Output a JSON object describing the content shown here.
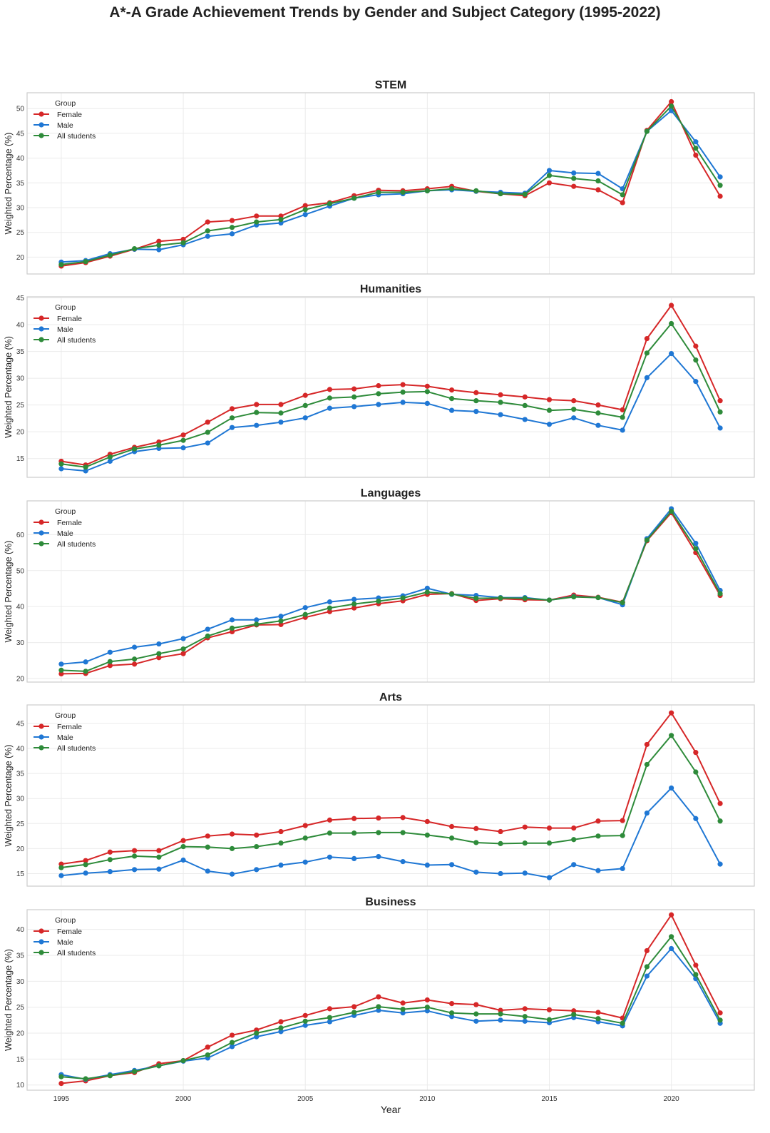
{
  "title": "A*-A Grade Achievement Trends by Gender and Subject Category (1995-2022)",
  "chart_data": {
    "type": "line",
    "title": "A*-A Grade Achievement Trends by Gender and Subject Category (1995-2022)",
    "xlabel": "Year",
    "ylabel": "Weighted Percentage (%)",
    "x": [
      1995,
      1996,
      1997,
      1998,
      1999,
      2000,
      2001,
      2002,
      2003,
      2004,
      2005,
      2006,
      2007,
      2008,
      2009,
      2010,
      2011,
      2012,
      2013,
      2014,
      2015,
      2016,
      2017,
      2018,
      2019,
      2020,
      2021,
      2022
    ],
    "xlim": [
      1993.6,
      2023.4
    ],
    "x_ticks": [
      1995,
      2000,
      2005,
      2010,
      2015,
      2020
    ],
    "grid": true,
    "legend": {
      "title": "Group",
      "placement": "top-left",
      "entries": [
        "Female",
        "Male",
        "All students"
      ]
    },
    "colors": {
      "Female": "#d62728",
      "Male": "#1f77d4",
      "All students": "#2e8b3a"
    },
    "panels": [
      {
        "title": "STEM",
        "ylim": [
          16.6,
          53.2
        ],
        "y_ticks": [
          20,
          25,
          30,
          35,
          40,
          45,
          50
        ],
        "series": [
          {
            "name": "Female",
            "values": [
              18.2,
              18.9,
              20.2,
              21.6,
              23.2,
              23.6,
              27.1,
              27.4,
              28.3,
              28.3,
              30.4,
              31.0,
              32.4,
              33.5,
              33.4,
              33.8,
              34.3,
              33.3,
              32.8,
              32.4,
              35.0,
              34.3,
              33.6,
              31.0,
              45.6,
              51.4,
              40.6,
              32.3
            ]
          },
          {
            "name": "Male",
            "values": [
              19.0,
              19.3,
              20.7,
              21.6,
              21.5,
              22.5,
              24.2,
              24.7,
              26.5,
              26.9,
              28.6,
              30.3,
              31.9,
              32.6,
              32.8,
              33.4,
              33.6,
              33.3,
              33.1,
              32.9,
              37.5,
              37.0,
              36.9,
              33.8,
              45.4,
              49.6,
              43.3,
              36.2
            ]
          },
          {
            "name": "All students",
            "values": [
              18.5,
              19.1,
              20.4,
              21.7,
              22.4,
              22.9,
              25.3,
              26.0,
              27.1,
              27.6,
              29.6,
              30.8,
              31.9,
              33.1,
              33.1,
              33.4,
              33.8,
              33.4,
              32.8,
              32.7,
              36.5,
              35.9,
              35.4,
              32.6,
              45.4,
              50.5,
              42.0,
              34.5
            ]
          }
        ]
      },
      {
        "title": "Humanities",
        "ylim": [
          11.5,
          45.2
        ],
        "y_ticks": [
          15,
          20,
          25,
          30,
          35,
          40,
          45
        ],
        "series": [
          {
            "name": "Female",
            "values": [
              14.5,
              13.8,
              15.8,
              17.1,
              18.1,
              19.4,
              21.8,
              24.3,
              25.1,
              25.1,
              26.8,
              27.9,
              28.0,
              28.6,
              28.8,
              28.5,
              27.8,
              27.3,
              26.9,
              26.5,
              26.0,
              25.8,
              25.0,
              24.1,
              37.4,
              43.6,
              36.0,
              25.8
            ]
          },
          {
            "name": "Male",
            "values": [
              13.1,
              12.7,
              14.5,
              16.3,
              16.9,
              17.0,
              17.9,
              20.8,
              21.2,
              21.8,
              22.6,
              24.4,
              24.7,
              25.1,
              25.5,
              25.3,
              24.0,
              23.8,
              23.2,
              22.3,
              21.4,
              22.6,
              21.2,
              20.3,
              30.1,
              34.6,
              29.4,
              20.7
            ]
          },
          {
            "name": "All students",
            "values": [
              14.0,
              13.4,
              15.3,
              16.8,
              17.5,
              18.4,
              19.9,
              22.6,
              23.6,
              23.5,
              24.9,
              26.3,
              26.5,
              27.1,
              27.4,
              27.5,
              26.2,
              25.8,
              25.5,
              24.9,
              24.0,
              24.2,
              23.5,
              22.7,
              34.7,
              40.2,
              33.4,
              23.7
            ]
          }
        ]
      },
      {
        "title": "Languages",
        "ylim": [
          19.0,
          69.4
        ],
        "y_ticks": [
          20,
          30,
          40,
          50,
          60
        ],
        "series": [
          {
            "name": "Female",
            "values": [
              21.3,
              21.4,
              23.6,
              24.0,
              25.8,
              26.9,
              31.3,
              33.0,
              34.9,
              35.0,
              37.0,
              38.6,
              39.6,
              40.8,
              41.6,
              43.4,
              43.6,
              41.7,
              42.2,
              41.9,
              41.8,
              43.2,
              42.6,
              41.2,
              58.3,
              66.1,
              55.0,
              43.1
            ]
          },
          {
            "name": "Male",
            "values": [
              24.0,
              24.6,
              27.3,
              28.7,
              29.6,
              31.1,
              33.7,
              36.3,
              36.3,
              37.3,
              39.7,
              41.3,
              42.0,
              42.4,
              43.0,
              45.1,
              43.4,
              43.1,
              42.5,
              42.5,
              41.8,
              42.8,
              42.5,
              40.5,
              58.9,
              67.2,
              57.6,
              44.5
            ]
          },
          {
            "name": "All students",
            "values": [
              22.3,
              22.0,
              24.7,
              25.4,
              26.9,
              28.2,
              31.8,
              34.0,
              35.1,
              36.0,
              37.8,
              39.6,
              40.7,
              41.5,
              42.4,
              44.0,
              43.5,
              42.3,
              42.4,
              42.3,
              41.8,
              42.7,
              42.5,
              41.1,
              58.5,
              66.5,
              56.1,
              43.6
            ]
          }
        ]
      },
      {
        "title": "Arts",
        "ylim": [
          12.5,
          48.7
        ],
        "y_ticks": [
          15,
          20,
          25,
          30,
          35,
          40,
          45
        ],
        "series": [
          {
            "name": "Female",
            "values": [
              16.9,
              17.6,
              19.3,
              19.6,
              19.6,
              21.6,
              22.5,
              22.9,
              22.7,
              23.4,
              24.6,
              25.7,
              26.0,
              26.1,
              26.2,
              25.4,
              24.4,
              24.0,
              23.4,
              24.3,
              24.1,
              24.1,
              25.5,
              25.6,
              40.8,
              47.1,
              39.2,
              29.0
            ]
          },
          {
            "name": "Male",
            "values": [
              14.6,
              15.1,
              15.4,
              15.8,
              15.9,
              17.7,
              15.5,
              14.9,
              15.8,
              16.7,
              17.3,
              18.3,
              18.0,
              18.4,
              17.4,
              16.7,
              16.8,
              15.3,
              15.0,
              15.1,
              14.2,
              16.8,
              15.6,
              16.0,
              27.1,
              32.1,
              26.0,
              16.9
            ]
          },
          {
            "name": "All students",
            "values": [
              16.2,
              16.8,
              17.8,
              18.5,
              18.3,
              20.4,
              20.3,
              20.0,
              20.4,
              21.1,
              22.1,
              23.1,
              23.1,
              23.2,
              23.2,
              22.7,
              22.1,
              21.2,
              21.0,
              21.1,
              21.1,
              21.8,
              22.5,
              22.6,
              36.8,
              42.6,
              35.3,
              25.5
            ]
          }
        ]
      },
      {
        "title": "Business",
        "ylim": [
          9.0,
          43.8
        ],
        "y_ticks": [
          10,
          15,
          20,
          25,
          30,
          35,
          40
        ],
        "series": [
          {
            "name": "Female",
            "values": [
              10.3,
              10.8,
              11.8,
              12.4,
              14.1,
              14.7,
              17.3,
              19.6,
              20.6,
              22.2,
              23.4,
              24.7,
              25.1,
              27.0,
              25.8,
              26.4,
              25.7,
              25.5,
              24.4,
              24.7,
              24.5,
              24.3,
              24.0,
              22.9,
              35.9,
              42.8,
              33.1,
              23.9
            ]
          },
          {
            "name": "Male",
            "values": [
              12.0,
              11.1,
              12.0,
              12.8,
              13.7,
              14.6,
              15.2,
              17.4,
              19.3,
              20.3,
              21.5,
              22.2,
              23.4,
              24.4,
              23.9,
              24.3,
              23.2,
              22.3,
              22.5,
              22.3,
              22.0,
              23.0,
              22.2,
              21.4,
              31.0,
              36.3,
              30.5,
              21.9
            ]
          },
          {
            "name": "All students",
            "values": [
              11.6,
              11.2,
              11.8,
              12.6,
              13.7,
              14.7,
              15.8,
              18.2,
              20.0,
              21.0,
              22.3,
              23.0,
              24.0,
              25.1,
              24.6,
              25.0,
              23.9,
              23.7,
              23.7,
              23.2,
              22.6,
              23.6,
              22.8,
              21.9,
              32.8,
              38.6,
              31.3,
              22.5
            ]
          }
        ]
      }
    ]
  }
}
